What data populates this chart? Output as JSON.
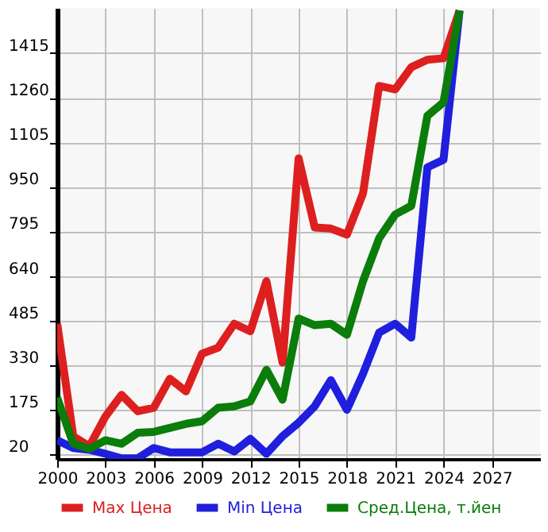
{
  "chart_data": {
    "type": "line",
    "x": [
      2000,
      2001,
      2002,
      2003,
      2004,
      2005,
      2006,
      2007,
      2008,
      2009,
      2010,
      2011,
      2012,
      2013,
      2014,
      2015,
      2016,
      2017,
      2018,
      2019,
      2020,
      2021,
      2022,
      2023,
      2024,
      2025
    ],
    "series": [
      {
        "name": "Max Цена",
        "color": "#dd1f1f",
        "values": [
          474,
          83,
          48,
          152,
          227,
          170,
          182,
          283,
          239,
          370,
          391,
          474,
          448,
          622,
          339,
          1049,
          809,
          805,
          784,
          927,
          1301,
          1289,
          1366,
          1392,
          1397,
          1563
        ]
      },
      {
        "name": "Min Цена",
        "color": "#1f1fdd",
        "values": [
          69,
          42,
          36,
          22,
          6,
          6,
          42,
          27,
          27,
          27,
          57,
          30,
          74,
          22,
          83,
          130,
          187,
          278,
          175,
          300,
          443,
          474,
          426,
          1018,
          1044,
          1563
        ]
      },
      {
        "name": "Сред.Цена, т.йен",
        "color": "#0a7d0a",
        "values": [
          217,
          57,
          39,
          69,
          57,
          95,
          98,
          112,
          126,
          135,
          182,
          187,
          204,
          314,
          210,
          492,
          469,
          474,
          436,
          622,
          771,
          854,
          884,
          1197,
          1244,
          1563
        ]
      }
    ],
    "xlim": [
      2000,
      2030
    ],
    "xticks": [
      2000,
      2003,
      2006,
      2009,
      2012,
      2015,
      2018,
      2021,
      2024,
      2027
    ],
    "ylim": [
      4,
      1572
    ],
    "yticks": [
      20,
      175,
      330,
      485,
      640,
      795,
      950,
      1105,
      1260,
      1415
    ],
    "grid": true,
    "legend": "bottom",
    "marker": "none",
    "line_style": "solid"
  }
}
